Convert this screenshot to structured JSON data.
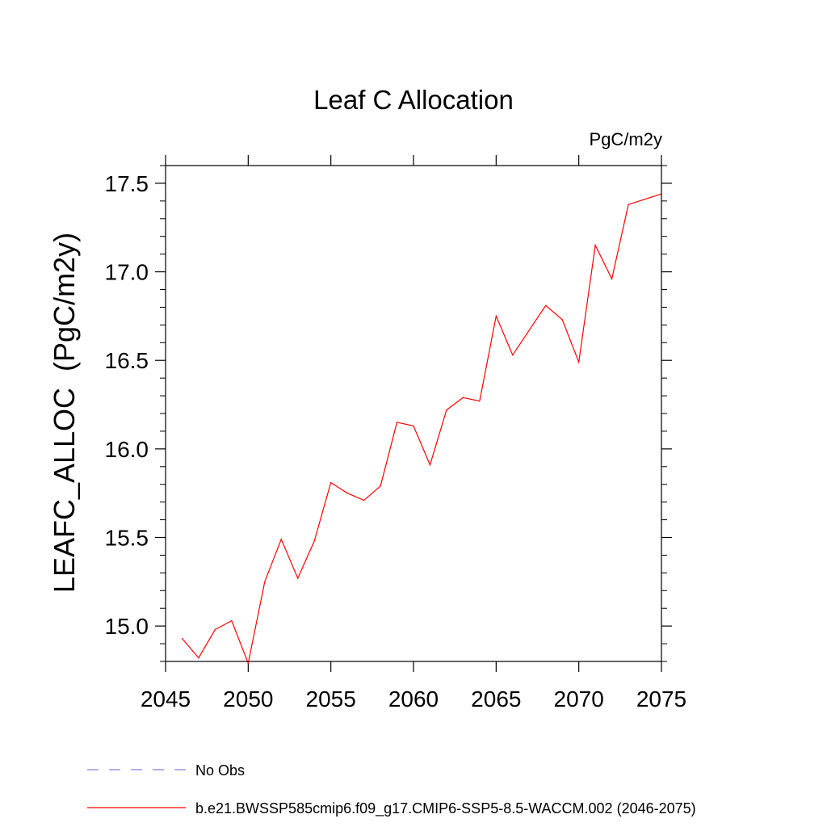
{
  "chart_data": {
    "type": "line",
    "title": "Leaf C Allocation",
    "units_label": "PgC/m2y",
    "ylabel": "LEAFC_ALLOC  (PgC/m2y)",
    "xlabel": "",
    "xlim": [
      2045,
      2075
    ],
    "ylim": [
      14.8,
      17.6
    ],
    "x_ticks": [
      2045,
      2050,
      2055,
      2060,
      2065,
      2070,
      2075
    ],
    "x_tick_labels": [
      "2045",
      "2050",
      "2055",
      "2060",
      "2065",
      "2070",
      "2075"
    ],
    "y_ticks": [
      15.0,
      15.5,
      16.0,
      16.5,
      17.0,
      17.5
    ],
    "y_tick_labels": [
      "15.0",
      "15.5",
      "16.0",
      "16.5",
      "17.0",
      "17.5"
    ],
    "grid": false,
    "legend_position": "bottom",
    "series": [
      {
        "name": "b.e21.BWSSP585cmip6.f09_g17.CMIP6-SSP5-8.5-WACCM.002 (2046-2075)",
        "color": "#ff0000",
        "dash": "solid",
        "x": [
          2046,
          2047,
          2048,
          2049,
          2050,
          2051,
          2052,
          2053,
          2054,
          2055,
          2056,
          2057,
          2058,
          2059,
          2060,
          2061,
          2062,
          2063,
          2064,
          2065,
          2066,
          2067,
          2068,
          2069,
          2070,
          2071,
          2072,
          2073,
          2074,
          2075
        ],
        "values": [
          14.93,
          14.82,
          14.98,
          15.03,
          14.79,
          15.25,
          15.49,
          15.27,
          15.48,
          15.81,
          15.75,
          15.71,
          15.79,
          16.15,
          16.13,
          15.91,
          16.22,
          16.29,
          16.27,
          16.75,
          16.53,
          16.67,
          16.81,
          16.73,
          16.49,
          17.15,
          16.96,
          17.38,
          17.41,
          17.44
        ]
      },
      {
        "name": "No Obs",
        "color": "#8a7fd0",
        "dash": "dashed",
        "x": [],
        "values": []
      }
    ]
  }
}
